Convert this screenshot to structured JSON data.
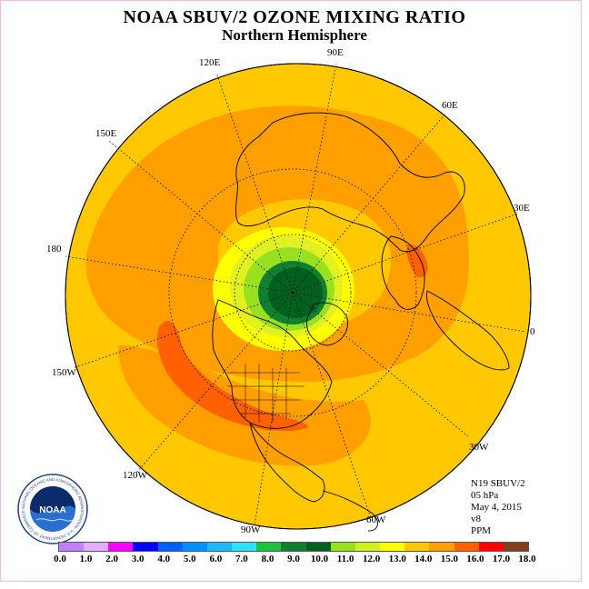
{
  "header": {
    "title": "NOAA SBUV/2 OZONE MIXING RATIO",
    "subtitle": "Northern Hemisphere"
  },
  "longitude_labels": {
    "e90": "90E",
    "e60": "60E",
    "e30": "30E",
    "zero": "0",
    "w30": "30W",
    "w60": "60W",
    "w90": "90W",
    "w120": "120W",
    "w150": "150W",
    "lon180": "180",
    "e150": "150E",
    "e120": "120E"
  },
  "info": {
    "instrument": "N19 SBUV/2",
    "level": "05 hPa",
    "date": "May 4, 2015",
    "version": "v8",
    "units": "PPM"
  },
  "logo": {
    "text": "NOAA",
    "ring_text": "NATIONAL OCEANIC AND ATMOSPHERIC ADMINISTRATION · U.S. DEPARTMENT OF COMMERCE"
  },
  "colorbar": {
    "labels": [
      "0.0",
      "1.0",
      "2.0",
      "3.0",
      "4.0",
      "5.0",
      "6.0",
      "7.0",
      "8.0",
      "9.0",
      "10.0",
      "11.0",
      "12.0",
      "13.0",
      "14.0",
      "15.0",
      "16.0",
      "17.0",
      "18.0"
    ],
    "colors": [
      "#c080ff",
      "#e0b0ff",
      "#ff00ff",
      "#0000ff",
      "#0060ff",
      "#0090ff",
      "#20b8ff",
      "#30e0ff",
      "#20c040",
      "#108030",
      "#006020",
      "#98e020",
      "#d0f020",
      "#ffff00",
      "#ffc800",
      "#ffa000",
      "#ff6000",
      "#ff0000",
      "#804020"
    ]
  },
  "map": {
    "projection": "north polar stereographic",
    "colors": {
      "ocean_bg": "#ffc800",
      "band_15": "#ffa000",
      "band_16": "#ff6000",
      "band_13": "#ffff00",
      "band_12": "#e0f020",
      "band_11": "#98e020",
      "band_10": "#108030",
      "band_9": "#006020",
      "coast": "#000000",
      "grid": "#000000"
    }
  }
}
